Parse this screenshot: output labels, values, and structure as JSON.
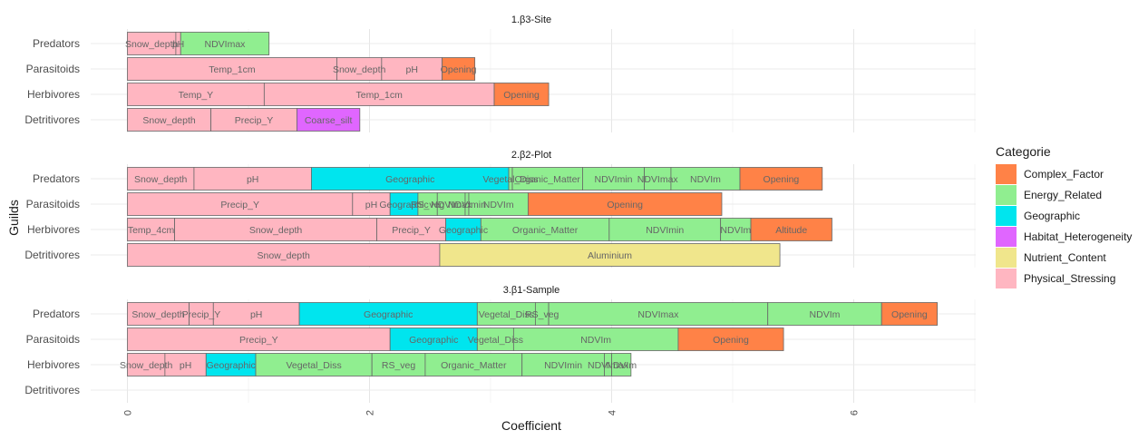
{
  "chart_data": {
    "type": "bar",
    "orientation": "horizontal-stacked",
    "xlabel": "Coefficient",
    "ylabel": "Guilds",
    "xlim": [
      0,
      7
    ],
    "x_ticks": [
      0,
      2,
      4,
      6
    ],
    "grid": true,
    "legend": {
      "title": "Categorie",
      "placement": "right",
      "entries": [
        {
          "name": "Complex_Factor",
          "color": "#FF8247"
        },
        {
          "name": "Energy_Related",
          "color": "#90EE90"
        },
        {
          "name": "Geographic",
          "color": "#00E5EE"
        },
        {
          "name": "Habitat_Heterogeneity",
          "color": "#E066FF"
        },
        {
          "name": "Nutrient_Content",
          "color": "#F0E68C"
        },
        {
          "name": "Physical_Stressing",
          "color": "#FFB6C1"
        }
      ]
    },
    "guilds": [
      "Predators",
      "Parasitoids",
      "Herbivores",
      "Detritivores"
    ],
    "panels": [
      {
        "title": "1.β3-Site",
        "rows": [
          {
            "guild": "Predators",
            "segments": [
              {
                "label": "Snow_depth",
                "value": 0.4,
                "category": "Physical_Stressing"
              },
              {
                "label": "pH",
                "value": 0.04,
                "category": "Physical_Stressing"
              },
              {
                "label": "NDVImax",
                "value": 0.73,
                "category": "Energy_Related"
              }
            ]
          },
          {
            "guild": "Parasitoids",
            "segments": [
              {
                "label": "Temp_1cm",
                "value": 1.73,
                "category": "Physical_Stressing"
              },
              {
                "label": "Snow_depth",
                "value": 0.37,
                "category": "Physical_Stressing"
              },
              {
                "label": "pH",
                "value": 0.5,
                "category": "Physical_Stressing"
              },
              {
                "label": "Opening",
                "value": 0.27,
                "category": "Complex_Factor"
              }
            ]
          },
          {
            "guild": "Herbivores",
            "segments": [
              {
                "label": "Temp_Y",
                "value": 1.13,
                "category": "Physical_Stressing"
              },
              {
                "label": "Temp_1cm",
                "value": 1.9,
                "category": "Physical_Stressing"
              },
              {
                "label": "Opening",
                "value": 0.45,
                "category": "Complex_Factor"
              }
            ]
          },
          {
            "guild": "Detritivores",
            "segments": [
              {
                "label": "Snow_depth",
                "value": 0.69,
                "category": "Physical_Stressing"
              },
              {
                "label": "Precip_Y",
                "value": 0.71,
                "category": "Physical_Stressing"
              },
              {
                "label": "Coarse_silt",
                "value": 0.52,
                "category": "Habitat_Heterogeneity"
              }
            ]
          }
        ]
      },
      {
        "title": "2.β2-Plot",
        "rows": [
          {
            "guild": "Predators",
            "segments": [
              {
                "label": "Snow_depth",
                "value": 0.55,
                "category": "Physical_Stressing"
              },
              {
                "label": "pH",
                "value": 0.97,
                "category": "Physical_Stressing"
              },
              {
                "label": "Geographic",
                "value": 1.63,
                "category": "Geographic"
              },
              {
                "label": "Vegetal_Diss",
                "value": 0.03,
                "category": "Energy_Related"
              },
              {
                "label": "Organic_Matter",
                "value": 0.58,
                "category": "Energy_Related"
              },
              {
                "label": "NDVImin",
                "value": 0.51,
                "category": "Energy_Related"
              },
              {
                "label": "NDVImax",
                "value": 0.22,
                "category": "Energy_Related"
              },
              {
                "label": "NDVIm",
                "value": 0.57,
                "category": "Energy_Related"
              },
              {
                "label": "Opening",
                "value": 0.68,
                "category": "Complex_Factor"
              }
            ]
          },
          {
            "guild": "Parasitoids",
            "segments": [
              {
                "label": "Precip_Y",
                "value": 1.86,
                "category": "Physical_Stressing"
              },
              {
                "label": "pH",
                "value": 0.31,
                "category": "Physical_Stressing"
              },
              {
                "label": "Geographic",
                "value": 0.23,
                "category": "Geographic"
              },
              {
                "label": "RS_veg",
                "value": 0.16,
                "category": "Energy_Related"
              },
              {
                "label": "NDVImax",
                "value": 0.23,
                "category": "Energy_Related"
              },
              {
                "label": "NDVImin",
                "value": 0.03,
                "category": "Energy_Related"
              },
              {
                "label": "NDVIm",
                "value": 0.49,
                "category": "Energy_Related"
              },
              {
                "label": "Opening",
                "value": 1.6,
                "category": "Complex_Factor"
              }
            ]
          },
          {
            "guild": "Herbivores",
            "segments": [
              {
                "label": "Temp_4cm",
                "value": 0.39,
                "category": "Physical_Stressing"
              },
              {
                "label": "Snow_depth",
                "value": 1.67,
                "category": "Physical_Stressing"
              },
              {
                "label": "Precip_Y",
                "value": 0.57,
                "category": "Physical_Stressing"
              },
              {
                "label": "Geographic",
                "value": 0.29,
                "category": "Geographic"
              },
              {
                "label": "Organic_Matter",
                "value": 1.06,
                "category": "Energy_Related"
              },
              {
                "label": "NDVImin",
                "value": 0.92,
                "category": "Energy_Related"
              },
              {
                "label": "NDVIm",
                "value": 0.25,
                "category": "Energy_Related"
              },
              {
                "label": "Altitude",
                "value": 0.67,
                "category": "Complex_Factor"
              }
            ]
          },
          {
            "guild": "Detritivores",
            "segments": [
              {
                "label": "Snow_depth",
                "value": 2.58,
                "category": "Physical_Stressing"
              },
              {
                "label": "Aluminium",
                "value": 2.81,
                "category": "Nutrient_Content"
              }
            ]
          }
        ]
      },
      {
        "title": "3.β1-Sample",
        "rows": [
          {
            "guild": "Predators",
            "segments": [
              {
                "label": "Snow_depth",
                "value": 0.51,
                "category": "Physical_Stressing"
              },
              {
                "label": "Precip_Y",
                "value": 0.2,
                "category": "Physical_Stressing"
              },
              {
                "label": "pH",
                "value": 0.71,
                "category": "Physical_Stressing"
              },
              {
                "label": "Geographic",
                "value": 1.47,
                "category": "Geographic"
              },
              {
                "label": "Vegetal_Diss",
                "value": 0.48,
                "category": "Energy_Related"
              },
              {
                "label": "RS_veg",
                "value": 0.11,
                "category": "Energy_Related"
              },
              {
                "label": "NDVImax",
                "value": 1.81,
                "category": "Energy_Related"
              },
              {
                "label": "NDVIm",
                "value": 0.94,
                "category": "Energy_Related"
              },
              {
                "label": "Opening",
                "value": 0.46,
                "category": "Complex_Factor"
              }
            ]
          },
          {
            "guild": "Parasitoids",
            "segments": [
              {
                "label": "Precip_Y",
                "value": 2.17,
                "category": "Physical_Stressing"
              },
              {
                "label": "Geographic",
                "value": 0.72,
                "category": "Geographic"
              },
              {
                "label": "Vegetal_Diss",
                "value": 0.3,
                "category": "Energy_Related"
              },
              {
                "label": "NDVIm",
                "value": 1.36,
                "category": "Energy_Related"
              },
              {
                "label": "Opening",
                "value": 0.87,
                "category": "Complex_Factor"
              }
            ]
          },
          {
            "guild": "Herbivores",
            "segments": [
              {
                "label": "Snow_depth",
                "value": 0.31,
                "category": "Physical_Stressing"
              },
              {
                "label": "pH",
                "value": 0.34,
                "category": "Physical_Stressing"
              },
              {
                "label": "Geographic",
                "value": 0.41,
                "category": "Geographic"
              },
              {
                "label": "Vegetal_Diss",
                "value": 0.96,
                "category": "Energy_Related"
              },
              {
                "label": "RS_veg",
                "value": 0.44,
                "category": "Energy_Related"
              },
              {
                "label": "Organic_Matter",
                "value": 0.8,
                "category": "Energy_Related"
              },
              {
                "label": "NDVImin",
                "value": 0.68,
                "category": "Energy_Related"
              },
              {
                "label": "NDVImax",
                "value": 0.06,
                "category": "Energy_Related"
              },
              {
                "label": "NDVIm",
                "value": 0.16,
                "category": "Energy_Related"
              }
            ]
          },
          {
            "guild": "Detritivores",
            "segments": []
          }
        ]
      }
    ]
  }
}
